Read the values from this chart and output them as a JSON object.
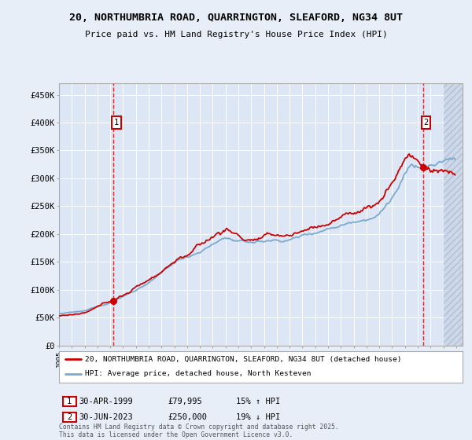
{
  "title": "20, NORTHUMBRIA ROAD, QUARRINGTON, SLEAFORD, NG34 8UT",
  "subtitle": "Price paid vs. HM Land Registry's House Price Index (HPI)",
  "legend_line1": "20, NORTHUMBRIA ROAD, QUARRINGTON, SLEAFORD, NG34 8UT (detached house)",
  "legend_line2": "HPI: Average price, detached house, North Kesteven",
  "footnote": "Contains HM Land Registry data © Crown copyright and database right 2025.\nThis data is licensed under the Open Government Licence v3.0.",
  "annotation1_date": "30-APR-1999",
  "annotation1_price": "£79,995",
  "annotation1_hpi": "15% ↑ HPI",
  "annotation2_date": "30-JUN-2023",
  "annotation2_price": "£250,000",
  "annotation2_hpi": "19% ↓ HPI",
  "ylim": [
    0,
    470000
  ],
  "yticks": [
    0,
    50000,
    100000,
    150000,
    200000,
    250000,
    300000,
    350000,
    400000,
    450000
  ],
  "background_color": "#e8eef8",
  "plot_bg": "#dce6f5",
  "grid_color": "#ffffff",
  "red_color": "#cc0000",
  "blue_color": "#7aaad0",
  "hatch_color": "#c8d4e8"
}
